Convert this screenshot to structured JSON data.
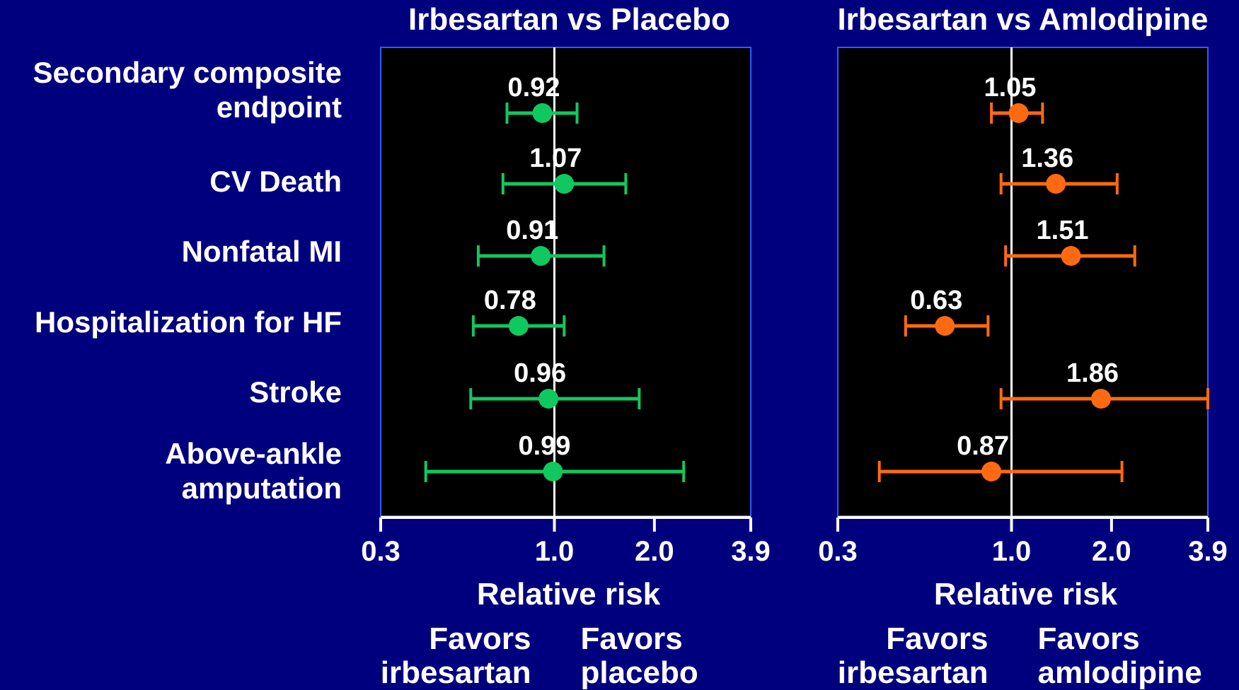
{
  "chart_data": {
    "type": "forest",
    "scale": "log",
    "endpoints": [
      [
        "Secondary composite",
        "endpoint"
      ],
      [
        "CV Death"
      ],
      [
        "Nonfatal MI"
      ],
      [
        "Hospitalization for HF"
      ],
      [
        "Stroke"
      ],
      [
        "Above-ankle",
        "amputation"
      ]
    ],
    "xlabel": "Relative risk",
    "xticks": [
      "0.3",
      "1.0",
      "2.0",
      "3.9"
    ],
    "xlim": [
      0.3,
      3.9
    ],
    "reference": 1.0,
    "panels": [
      {
        "title": "Irbesartan vs Placebo",
        "color": "#10c860",
        "favors_left": [
          "Favors",
          "irbesartan"
        ],
        "favors_right": [
          "Favors",
          "placebo"
        ],
        "points": [
          {
            "label": "0.92",
            "rr": 0.92,
            "lo": 0.72,
            "hi": 1.17
          },
          {
            "label": "1.07",
            "rr": 1.07,
            "lo": 0.7,
            "hi": 1.64
          },
          {
            "label": "0.91",
            "rr": 0.91,
            "lo": 0.59,
            "hi": 1.41
          },
          {
            "label": "0.78",
            "rr": 0.78,
            "lo": 0.57,
            "hi": 1.07
          },
          {
            "label": "0.96",
            "rr": 0.96,
            "lo": 0.56,
            "hi": 1.8
          },
          {
            "label": "0.99",
            "rr": 0.99,
            "lo": 0.41,
            "hi": 2.45
          }
        ]
      },
      {
        "title": "Irbesartan vs Amlodipine",
        "color": "#ff6a10",
        "favors_left": [
          "Favors",
          "irbesartan"
        ],
        "favors_right": [
          "Favors",
          "amlodipine"
        ],
        "points": [
          {
            "label": "1.05",
            "rr": 1.05,
            "lo": 0.87,
            "hi": 1.24
          },
          {
            "label": "1.36",
            "rr": 1.36,
            "lo": 0.93,
            "hi": 2.08
          },
          {
            "label": "1.51",
            "rr": 1.51,
            "lo": 0.96,
            "hi": 2.35
          },
          {
            "label": "0.63",
            "rr": 0.63,
            "lo": 0.48,
            "hi": 0.85
          },
          {
            "label": "1.86",
            "rr": 1.86,
            "lo": 0.93,
            "hi": 3.9
          },
          {
            "label": "0.87",
            "rr": 0.87,
            "lo": 0.4,
            "hi": 2.15
          }
        ]
      }
    ]
  }
}
